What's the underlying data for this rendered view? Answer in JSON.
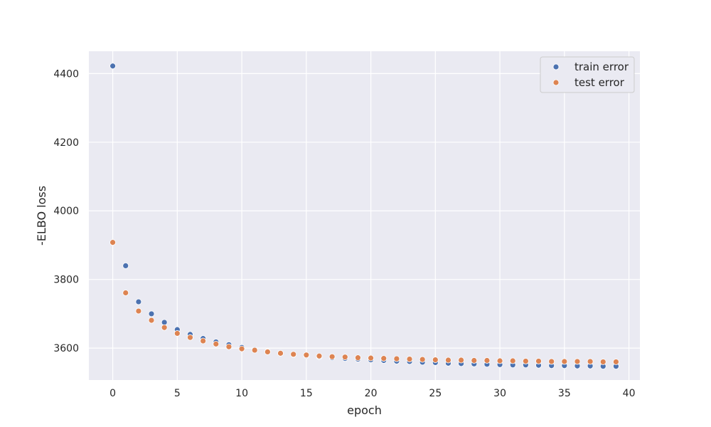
{
  "chart_data": {
    "type": "scatter",
    "title": "",
    "xlabel": "epoch",
    "ylabel": "-ELBO loss",
    "xlim": [
      -1.85,
      40.85
    ],
    "ylim": [
      3507,
      4465
    ],
    "xticks": [
      0,
      5,
      10,
      15,
      20,
      25,
      30,
      35,
      40
    ],
    "yticks": [
      3600,
      3800,
      4000,
      4200,
      4400
    ],
    "grid": true,
    "legend_position": "top-right",
    "series": [
      {
        "name": "train error",
        "color": "#4c72b0",
        "x": [
          0,
          1,
          2,
          3,
          4,
          5,
          6,
          7,
          8,
          9,
          10,
          11,
          12,
          13,
          14,
          15,
          16,
          17,
          18,
          19,
          20,
          21,
          22,
          23,
          24,
          25,
          26,
          27,
          28,
          29,
          30,
          31,
          32,
          33,
          34,
          35,
          36,
          37,
          38,
          39
        ],
        "y": [
          4422,
          3840,
          3735,
          3700,
          3675,
          3654,
          3640,
          3628,
          3618,
          3610,
          3602,
          3596,
          3590,
          3585,
          3581,
          3578,
          3575,
          3572,
          3570,
          3568,
          3566,
          3564,
          3562,
          3561,
          3559,
          3558,
          3556,
          3555,
          3554,
          3553,
          3552,
          3551,
          3551,
          3550,
          3549,
          3549,
          3548,
          3548,
          3547,
          3547
        ]
      },
      {
        "name": "test error",
        "color": "#dd8452",
        "x": [
          0,
          1,
          2,
          3,
          4,
          5,
          6,
          7,
          8,
          9,
          10,
          11,
          12,
          13,
          14,
          15,
          16,
          17,
          18,
          19,
          20,
          21,
          22,
          23,
          24,
          25,
          26,
          27,
          28,
          29,
          30,
          31,
          32,
          33,
          34,
          35,
          36,
          37,
          38,
          39
        ],
        "y": [
          3908,
          3761,
          3708,
          3681,
          3660,
          3643,
          3631,
          3621,
          3612,
          3604,
          3598,
          3594,
          3589,
          3585,
          3582,
          3580,
          3577,
          3575,
          3574,
          3572,
          3571,
          3570,
          3569,
          3568,
          3567,
          3566,
          3565,
          3565,
          3564,
          3564,
          3563,
          3563,
          3562,
          3562,
          3561,
          3561,
          3561,
          3561,
          3560,
          3560
        ]
      }
    ]
  }
}
